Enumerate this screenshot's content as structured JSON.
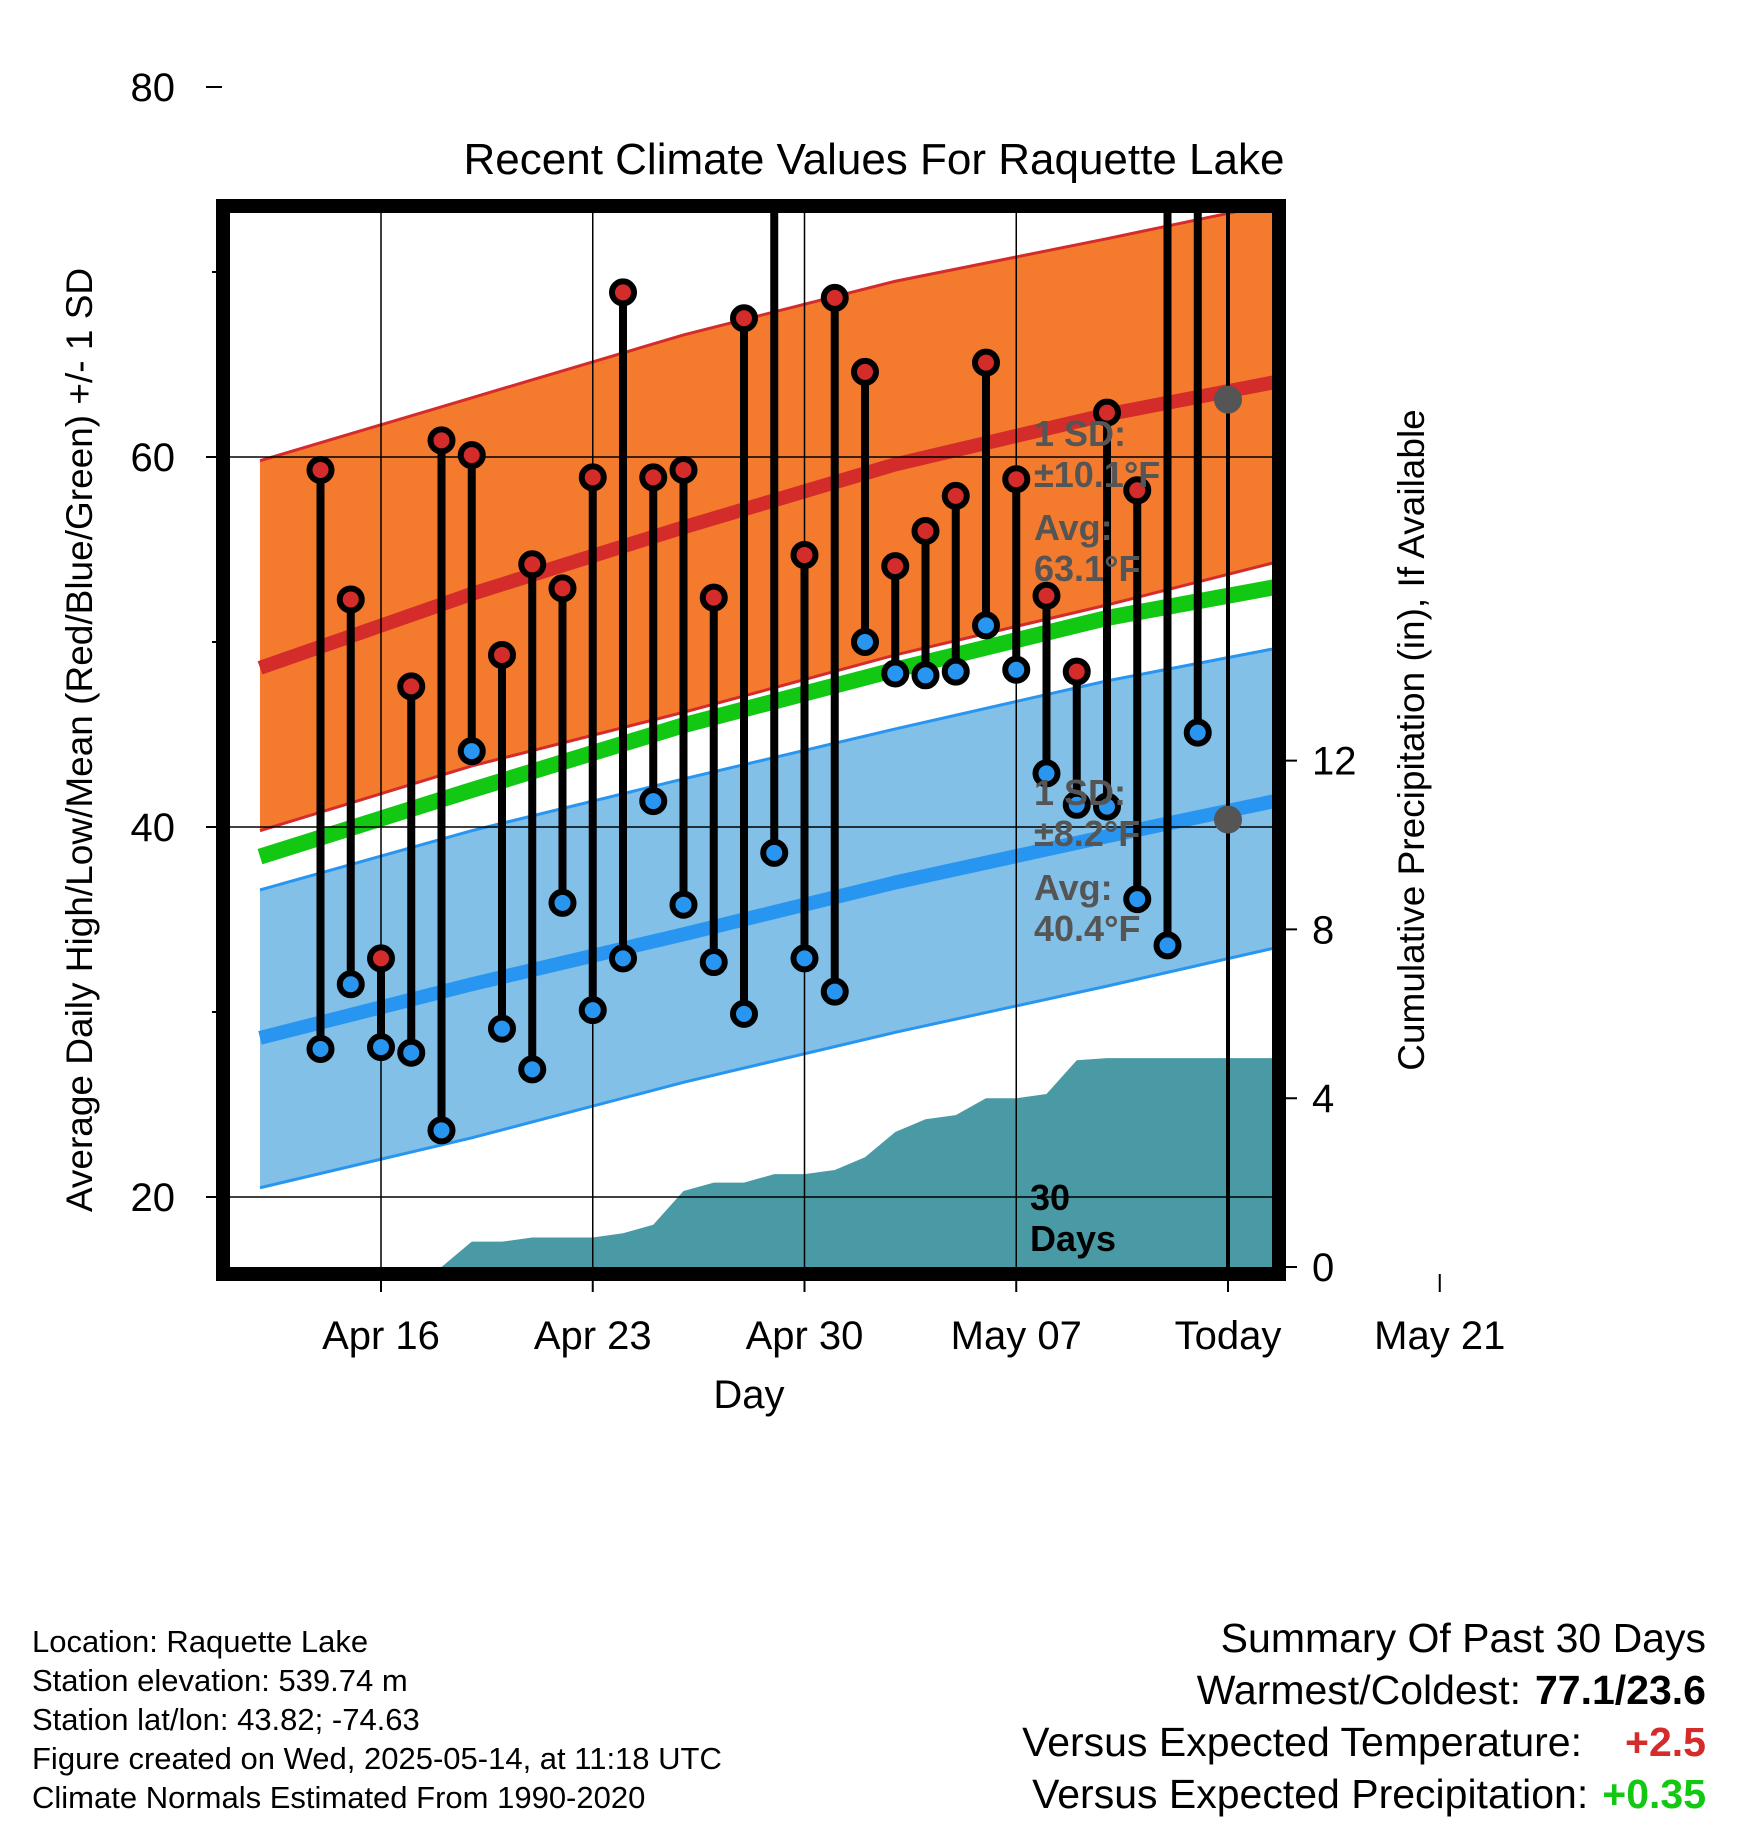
{
  "chart_data": {
    "type": "line",
    "title": "Recent Climate Values For Raquette Lake",
    "xlabel": "Day",
    "ylabel_left": "Average Daily High/Low/Mean (Red/Blue/Green) +/- 1 SD",
    "ylabel_right": "Cumulative Precipitation (in), If Available",
    "x_range": [
      "2025-04-12",
      "2025-05-23"
    ],
    "x_ticks": [
      {
        "date": "2025-04-16",
        "label": "Apr 16"
      },
      {
        "date": "2025-04-23",
        "label": "Apr 23"
      },
      {
        "date": "2025-04-30",
        "label": "Apr 30"
      },
      {
        "date": "2025-05-07",
        "label": "May 07"
      },
      {
        "date": "2025-05-14",
        "label": "Today"
      },
      {
        "date": "2025-05-21",
        "label": "May 21"
      }
    ],
    "ylim_left": [
      16,
      82
    ],
    "yticks_left": [
      20,
      40,
      60,
      80
    ],
    "ylim_right": [
      0,
      20
    ],
    "yticks_right": [
      0,
      4,
      8,
      12
    ],
    "grid": true,
    "today": "2025-05-14",
    "today_label": "30 Days",
    "normals": {
      "dates": [
        "2025-04-12",
        "2025-04-19",
        "2025-04-26",
        "2025-05-03",
        "2025-05-10",
        "2025-05-17",
        "2025-05-23"
      ],
      "high_mean": [
        48.6,
        52.6,
        56.2,
        59.6,
        62.3,
        64.5,
        65.9
      ],
      "high_upper": [
        59.8,
        63.2,
        66.6,
        69.5,
        71.8,
        74.2,
        75.5
      ],
      "high_lower": [
        39.8,
        43.3,
        46.2,
        49.3,
        52.0,
        54.9,
        56.9
      ],
      "mean": [
        38.4,
        42.0,
        45.5,
        48.5,
        51.3,
        53.4,
        54.9
      ],
      "low_mean": [
        28.6,
        31.5,
        34.2,
        37.0,
        39.5,
        41.9,
        43.6
      ],
      "low_upper": [
        36.6,
        39.8,
        42.6,
        45.3,
        47.9,
        50.1,
        51.9
      ],
      "low_lower": [
        20.5,
        23.2,
        26.2,
        28.9,
        31.4,
        34.0,
        36.2
      ]
    },
    "annotations": {
      "high_sd": "1 SD:\n±10.1°F",
      "high_avg": "Avg:\n63.1°F",
      "high_avg_value": 63.1,
      "low_sd": "1 SD:\n±8.2°F",
      "low_avg": "Avg:\n40.4°F",
      "low_avg_value": 40.4
    },
    "daily": {
      "dates": [
        "2025-04-14",
        "2025-04-15",
        "2025-04-16",
        "2025-04-17",
        "2025-04-18",
        "2025-04-19",
        "2025-04-20",
        "2025-04-21",
        "2025-04-22",
        "2025-04-23",
        "2025-04-24",
        "2025-04-25",
        "2025-04-26",
        "2025-04-27",
        "2025-04-28",
        "2025-04-29",
        "2025-04-30",
        "2025-05-01",
        "2025-05-02",
        "2025-05-03",
        "2025-05-04",
        "2025-05-05",
        "2025-05-06",
        "2025-05-07",
        "2025-05-08",
        "2025-05-09",
        "2025-05-10",
        "2025-05-11",
        "2025-05-12",
        "2025-05-13"
      ],
      "high": [
        59.3,
        52.3,
        32.9,
        47.6,
        60.9,
        60.1,
        49.3,
        54.2,
        52.9,
        58.9,
        68.9,
        58.9,
        59.3,
        52.4,
        67.5,
        75.5,
        54.7,
        68.6,
        64.6,
        54.1,
        56.0,
        57.9,
        65.1,
        58.8,
        52.5,
        48.4,
        62.4,
        58.2,
        77.1,
        75.6
      ],
      "low": [
        28.0,
        31.5,
        28.1,
        27.8,
        23.6,
        44.1,
        29.1,
        26.9,
        35.9,
        30.1,
        32.9,
        41.4,
        35.8,
        32.7,
        29.9,
        38.6,
        32.9,
        31.1,
        50.0,
        48.3,
        48.2,
        48.4,
        50.9,
        48.5,
        42.9,
        41.2,
        41.1,
        36.1,
        33.6,
        45.1
      ]
    },
    "precip": {
      "dates": [
        "2025-04-16",
        "2025-04-17",
        "2025-04-18",
        "2025-04-19",
        "2025-04-20",
        "2025-04-21",
        "2025-04-22",
        "2025-04-23",
        "2025-04-24",
        "2025-04-25",
        "2025-04-26",
        "2025-04-27",
        "2025-04-28",
        "2025-04-29",
        "2025-04-30",
        "2025-05-01",
        "2025-05-02",
        "2025-05-03",
        "2025-05-04",
        "2025-05-05",
        "2025-05-06",
        "2025-05-07",
        "2025-05-08",
        "2025-05-09",
        "2025-05-10",
        "2025-05-11",
        "2025-05-12",
        "2025-05-13",
        "2025-05-14",
        "2025-05-23"
      ],
      "values": [
        0.0,
        0.0,
        0.0,
        0.6,
        0.6,
        0.7,
        0.7,
        0.7,
        0.8,
        1.0,
        1.8,
        2.0,
        2.0,
        2.2,
        2.2,
        2.3,
        2.6,
        3.2,
        3.5,
        3.6,
        4.0,
        4.0,
        4.1,
        4.9,
        4.95,
        4.95,
        4.95,
        4.95,
        4.95,
        4.95
      ]
    },
    "colors": {
      "high_band": "#f47a2d",
      "high_line": "#d42b2b",
      "low_band": "#82c0e8",
      "low_line": "#2896f0",
      "mean_line": "#12c812",
      "precip": "#4a9aa5",
      "annotation": "#555555",
      "high_marker": "#d42b2b",
      "low_marker": "#2896f0"
    }
  },
  "info": {
    "location": "Location: Raquette Lake",
    "elevation": "Station elevation: 539.74 m",
    "latlon": "Station lat/lon: 43.82; -74.63",
    "created": "Figure created on Wed, 2025-05-14, at 11:18 UTC",
    "normals": "Climate Normals Estimated From 1990-2020"
  },
  "summary": {
    "title": "Summary Of Past 30 Days",
    "warm_cold_label": "Warmest/Coldest:",
    "warm_cold_value": "77.1/23.6",
    "temp_label": "Versus Expected Temperature:",
    "temp_value": "+2.5",
    "temp_color": "#d42b2b",
    "precip_label": "Versus Expected Precipitation:",
    "precip_value": "+0.35",
    "precip_color": "#12c812"
  }
}
